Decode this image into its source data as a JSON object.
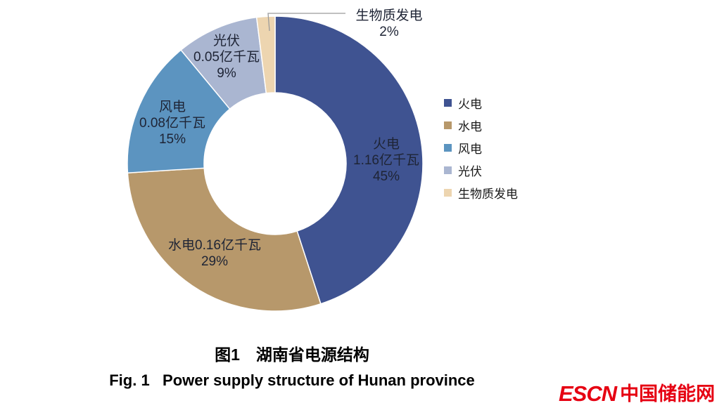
{
  "chart_data": {
    "type": "pie",
    "subtype": "donut",
    "title": "图1　湖南省电源结构",
    "title_en": "Fig. 1   Power supply structure of Hunan province",
    "legend_position": "right",
    "start_angle": "12-oclock-clockwise",
    "slices": [
      {
        "id": "thermal",
        "name": "火电",
        "capacity": "1.16亿千瓦",
        "value": 45,
        "percent_label": "45%",
        "color": "#3f5391"
      },
      {
        "id": "hydro",
        "name": "水电",
        "capacity": "0.16亿千瓦",
        "value": 29,
        "percent_label": "29%",
        "color": "#b7986b"
      },
      {
        "id": "wind",
        "name": "风电",
        "capacity": "0.08亿千瓦",
        "value": 15,
        "percent_label": "15%",
        "color": "#5c94c0"
      },
      {
        "id": "solar",
        "name": "光伏",
        "capacity": "0.05亿千瓦",
        "value": 9,
        "percent_label": "9%",
        "color": "#aab6d1"
      },
      {
        "id": "biomass",
        "name": "生物质发电",
        "capacity": "",
        "value": 2,
        "percent_label": "2%",
        "color": "#edd5b0"
      }
    ]
  },
  "logo": {
    "latin": "ESCN",
    "cn": "中国储能网",
    "color": "#e60012"
  }
}
